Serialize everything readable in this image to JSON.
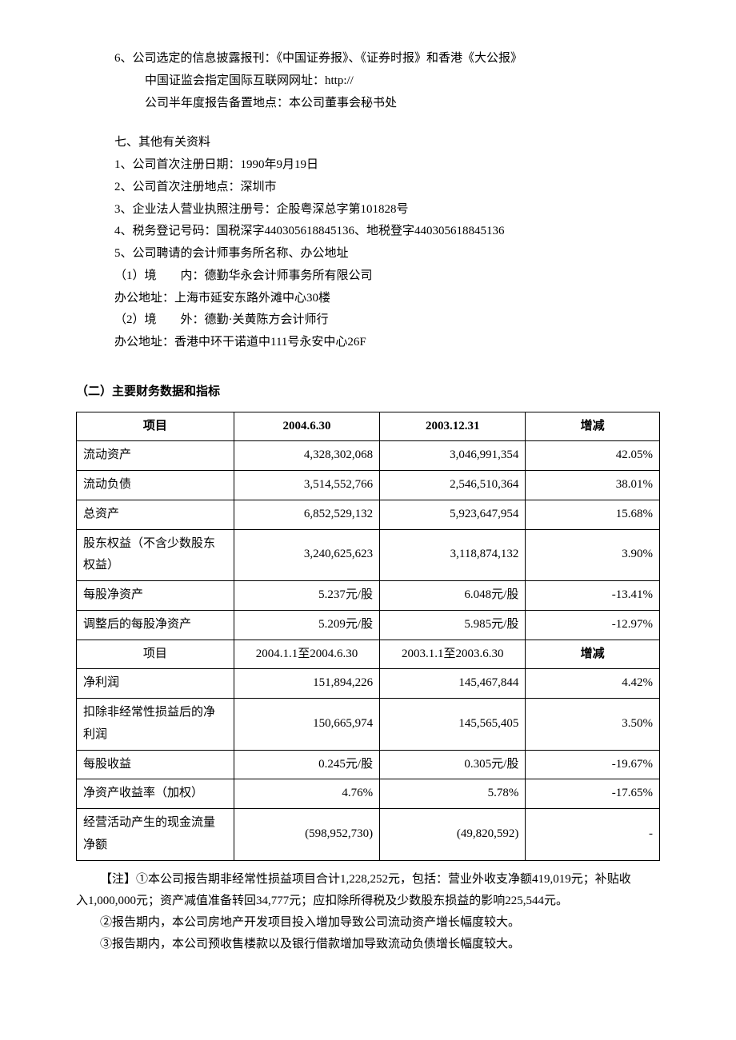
{
  "top": {
    "l1": "6、公司选定的信息披露报刊：《中国证券报》、《证券时报》和香港《大公报》",
    "l2": "中国证监会指定国际互联网网址：http://",
    "l3": "公司半年度报告备置地点：本公司董事会秘书处"
  },
  "sec7": {
    "title": "七、其他有关资料",
    "items": [
      "1、公司首次注册日期：1990年9月19日",
      "2、公司首次注册地点：深圳市",
      "3、企业法人营业执照注册号：企股粤深总字第101828号",
      "4、税务登记号码：国税深字440305618845136、地税登字440305618845136",
      "5、公司聘请的会计师事务所名称、办公地址",
      "（1）境　　内：德勤华永会计师事务所有限公司",
      "办公地址：上海市延安东路外滩中心30楼",
      "（2）境　　外：德勤·关黄陈方会计师行",
      "办公地址：香港中环干诺道中111号永安中心26F"
    ]
  },
  "sec2title": "（二）主要财务数据和指标",
  "table": {
    "header1": [
      "项目",
      "2004.6.30",
      "2003.12.31",
      "增减"
    ],
    "rows1": [
      [
        "流动资产",
        "4,328,302,068",
        "3,046,991,354",
        "42.05%"
      ],
      [
        "流动负债",
        "3,514,552,766",
        "2,546,510,364",
        "38.01%"
      ],
      [
        "总资产",
        "6,852,529,132",
        "5,923,647,954",
        "15.68%"
      ],
      [
        "股东权益（不含少数股东权益）",
        "3,240,625,623",
        "3,118,874,132",
        "3.90%"
      ],
      [
        "每股净资产",
        "5.237元/股",
        "6.048元/股",
        "-13.41%"
      ],
      [
        "调整后的每股净资产",
        "5.209元/股",
        "5.985元/股",
        "-12.97%"
      ]
    ],
    "header2": [
      "项目",
      "2004.1.1至2004.6.30",
      "2003.1.1至2003.6.30",
      "增减"
    ],
    "rows2": [
      [
        "净利润",
        "151,894,226",
        "145,467,844",
        "4.42%"
      ],
      [
        "扣除非经常性损益后的净利润",
        "150,665,974",
        "145,565,405",
        "3.50%"
      ],
      [
        "每股收益",
        "0.245元/股",
        "0.305元/股",
        "-19.67%"
      ],
      [
        "净资产收益率（加权）",
        "4.76%",
        "5.78%",
        "-17.65%"
      ],
      [
        "经营活动产生的现金流量净额",
        "(598,952,730)",
        "(49,820,592)",
        "-"
      ]
    ]
  },
  "notes": {
    "n1a": "【注】①本公司报告期非经常性损益项目合计1,228,252元，包括：营业外收支净额419,019元；补贴收",
    "n1b": "入1,000,000元；资产减值准备转回34,777元；应扣除所得税及少数股东损益的影响225,544元。",
    "n2": "②报告期内，本公司房地产开发项目投入增加导致公司流动资产增长幅度较大。",
    "n3": "③报告期内，本公司预收售楼款以及银行借款增加导致流动负债增长幅度较大。"
  }
}
